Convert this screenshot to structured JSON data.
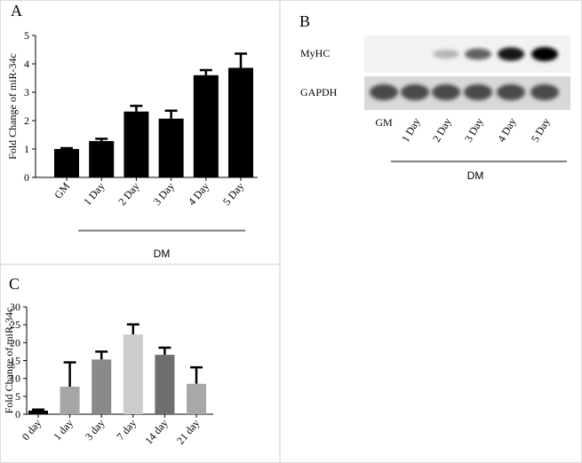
{
  "chart_data": [
    {
      "type": "bar",
      "title": "A",
      "ylabel": "Fold Change of miR-34c",
      "categories": [
        "GM",
        "1 Day",
        "2 Day",
        "3 Day",
        "4 Day",
        "5 Day"
      ],
      "values": [
        1.0,
        1.28,
        2.32,
        2.07,
        3.6,
        3.86
      ],
      "errors": [
        0.03,
        0.08,
        0.2,
        0.28,
        0.18,
        0.5
      ],
      "color": "#000000",
      "ylim": [
        0,
        5
      ],
      "yticks": [
        0,
        1,
        2,
        3,
        4,
        5
      ],
      "group_label": "DM"
    },
    {
      "type": "bar",
      "title": "C",
      "ylabel": "Fold Change of miR-34c",
      "categories": [
        "0 day",
        "1 day",
        "3 day",
        "7 day",
        "14 day",
        "21 day"
      ],
      "values": [
        1,
        7.7,
        15.3,
        22.3,
        16.6,
        8.5
      ],
      "errors": [
        0.3,
        6.8,
        2.2,
        2.8,
        2.0,
        4.6
      ],
      "colors": [
        "#000000",
        "#a6a6a6",
        "#8a8a8a",
        "#cccccc",
        "#6e6e6e",
        "#a8a8a8"
      ],
      "ylim": [
        0,
        30
      ],
      "yticks": [
        0,
        5,
        10,
        15,
        20,
        25,
        30
      ]
    }
  ],
  "blot": {
    "label": "B",
    "rows": [
      "MyHC",
      "GAPDH"
    ],
    "lanes": [
      "GM",
      "1 Day",
      "2 Day",
      "3 Day",
      "4 Day",
      "5 Day"
    ],
    "group_label": "DM"
  }
}
